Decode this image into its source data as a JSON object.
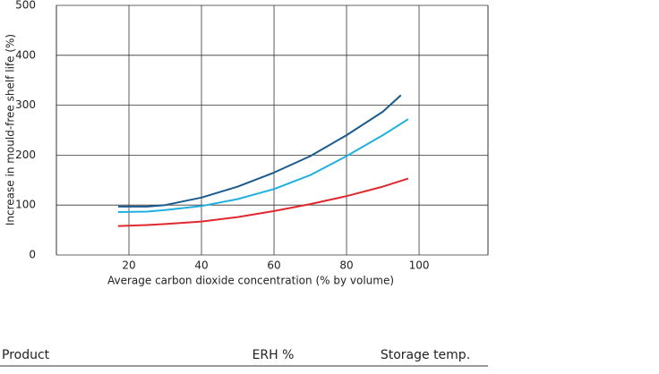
{
  "chart_data": {
    "type": "line",
    "xlabel": "Average carbon dioxide concentration (% by volume)",
    "ylabel": "Increase in mould-free shelf life (%)",
    "xlim": [
      0,
      119
    ],
    "ylim": [
      0,
      500
    ],
    "xticks": [
      20,
      40,
      60,
      80,
      100
    ],
    "yticks": [
      0,
      100,
      200,
      300,
      400,
      500
    ],
    "grid": true,
    "series": [
      {
        "color": "#1a5a8c",
        "x": [
          17,
          25,
          30,
          40,
          50,
          60,
          70,
          80,
          90,
          95
        ],
        "values": [
          97,
          97,
          100,
          115,
          137,
          165,
          198,
          240,
          287,
          320
        ]
      },
      {
        "color": "#1fb0e0",
        "x": [
          17,
          25,
          30,
          40,
          50,
          60,
          70,
          80,
          90,
          97
        ],
        "values": [
          86,
          87,
          90,
          98,
          112,
          132,
          160,
          198,
          240,
          272
        ]
      },
      {
        "color": "#e0282e",
        "x": [
          17,
          25,
          30,
          40,
          50,
          60,
          70,
          80,
          90,
          97
        ],
        "values": [
          58,
          60,
          62,
          67,
          76,
          88,
          102,
          118,
          137,
          153
        ]
      }
    ]
  },
  "table": {
    "columns": [
      "Product",
      "ERH %",
      "Storage temp."
    ]
  }
}
